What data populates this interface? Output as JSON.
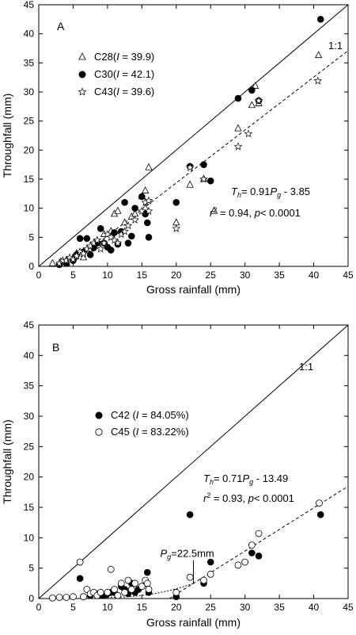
{
  "chart_data": [
    {
      "type": "scatter",
      "panel": "A",
      "xlabel": "Gross rainfall (mm)",
      "ylabel": "Throughfall (mm)",
      "xlim": [
        0,
        45
      ],
      "ylim": [
        0,
        45
      ],
      "xticks": [
        "0",
        "5",
        "10",
        "15",
        "20",
        "25",
        "30",
        "35",
        "40",
        "45"
      ],
      "yticks": [
        "0",
        "5",
        "10",
        "15",
        "20",
        "25",
        "30",
        "35",
        "40",
        "45"
      ],
      "one_to_one_label": "1:1",
      "legend_placement": "upper-left",
      "legend": [
        {
          "marker": "triangle",
          "pre": "C28(",
          "italic": "I",
          "post": " = 39.9)"
        },
        {
          "marker": "filled-circle",
          "pre": "C30(",
          "italic": "I",
          "post": " = 42.1)"
        },
        {
          "marker": "star",
          "pre": "C43(",
          "italic": "I",
          "post": " = 39.6)"
        }
      ],
      "equation": {
        "T": "T",
        "Tsub": "h",
        "mid": "= 0.91",
        "P": "P",
        "Psub": "g",
        "rest": " - 3.85"
      },
      "stats": {
        "r": "r",
        "sup": "2",
        "rest": " = 0.94, ",
        "p": "p",
        "tail": "< 0.0001"
      },
      "fit_line": {
        "slope": 0.91,
        "intercept": -3.85,
        "x_range": [
          4.2,
          45
        ]
      },
      "series": [
        {
          "name": "C28",
          "marker": "triangle",
          "points": [
            [
              2,
              0.5
            ],
            [
              3.2,
              0.8
            ],
            [
              4,
              1
            ],
            [
              5,
              1.5
            ],
            [
              5.5,
              2.2
            ],
            [
              6.5,
              1.5
            ],
            [
              7.5,
              3
            ],
            [
              8.5,
              4
            ],
            [
              9.5,
              5.5
            ],
            [
              10.5,
              6
            ],
            [
              11,
              9
            ],
            [
              11.5,
              9.5
            ],
            [
              12.5,
              7.5
            ],
            [
              13.5,
              8.5
            ],
            [
              14,
              9
            ],
            [
              15,
              12
            ],
            [
              15.5,
              13
            ],
            [
              15.5,
              10
            ],
            [
              16,
              17
            ],
            [
              20,
              7.5
            ],
            [
              22,
              14
            ],
            [
              24,
              15
            ],
            [
              25.5,
              9.5
            ],
            [
              29,
              23.7
            ],
            [
              31,
              27.7
            ],
            [
              31.5,
              31
            ],
            [
              32,
              28
            ],
            [
              40.7,
              36.3
            ]
          ]
        },
        {
          "name": "C30",
          "marker": "filled-circle",
          "points": [
            [
              3,
              0.3
            ],
            [
              4,
              0.5
            ],
            [
              5,
              1
            ],
            [
              5.5,
              2
            ],
            [
              6,
              4.8
            ],
            [
              6.5,
              2.5
            ],
            [
              7,
              4.8
            ],
            [
              7.5,
              2
            ],
            [
              8,
              3.2
            ],
            [
              8.5,
              4
            ],
            [
              9,
              6.5
            ],
            [
              9.5,
              4
            ],
            [
              10,
              3.3
            ],
            [
              10.5,
              2.8
            ],
            [
              11,
              5.8
            ],
            [
              11.5,
              3.8
            ],
            [
              12,
              6
            ],
            [
              12.5,
              11
            ],
            [
              13,
              4
            ],
            [
              13.5,
              5.2
            ],
            [
              14,
              10
            ],
            [
              15,
              12
            ],
            [
              15.5,
              9
            ],
            [
              15.8,
              7.5
            ],
            [
              16,
              5
            ],
            [
              20,
              11
            ],
            [
              22,
              17.2
            ],
            [
              24,
              17.5
            ],
            [
              25,
              14.7
            ],
            [
              29,
              28.9
            ],
            [
              31,
              30.3
            ],
            [
              32,
              28.5
            ],
            [
              41,
              42.5
            ]
          ]
        },
        {
          "name": "C43",
          "marker": "star",
          "points": [
            [
              3,
              0.5
            ],
            [
              3.5,
              1
            ],
            [
              4,
              1
            ],
            [
              4.5,
              1.5
            ],
            [
              5,
              1.2
            ],
            [
              5.5,
              1.8
            ],
            [
              6,
              2.5
            ],
            [
              6.5,
              2.2
            ],
            [
              7,
              3
            ],
            [
              7.5,
              3.5
            ],
            [
              8,
              4
            ],
            [
              8.5,
              4.5
            ],
            [
              9,
              3
            ],
            [
              9.5,
              4
            ],
            [
              10,
              5.5
            ],
            [
              10.5,
              5
            ],
            [
              11,
              4.5
            ],
            [
              11.5,
              4
            ],
            [
              12,
              5.5
            ],
            [
              12.5,
              6
            ],
            [
              13,
              7
            ],
            [
              14,
              8
            ],
            [
              15,
              9.5
            ],
            [
              15.5,
              11
            ],
            [
              16,
              11.3
            ],
            [
              16,
              9.5
            ],
            [
              20,
              6.5
            ],
            [
              22,
              17
            ],
            [
              24,
              15
            ],
            [
              29,
              20.6
            ],
            [
              30.5,
              22.8
            ],
            [
              32,
              28.5
            ],
            [
              40.6,
              31.9
            ]
          ]
        }
      ]
    },
    {
      "type": "scatter",
      "panel": "B",
      "xlabel": "Gross rainfall (mm)",
      "ylabel": "Throughfall (mm)",
      "xlim": [
        0,
        45
      ],
      "ylim": [
        0,
        45
      ],
      "xticks": [
        "0",
        "5",
        "10",
        "15",
        "20",
        "25",
        "30",
        "35",
        "40",
        "45"
      ],
      "yticks": [
        "0",
        "5",
        "10",
        "15",
        "20",
        "25",
        "30",
        "35",
        "40",
        "45"
      ],
      "one_to_one_label": "1:1",
      "legend_placement": "middle-left",
      "legend": [
        {
          "marker": "filled-circle",
          "pre": "C42 (",
          "italic": "I",
          "post": " = 84.05%)"
        },
        {
          "marker": "open-circle",
          "pre": "C45 (",
          "italic": "I",
          "post": " = 83.22%)"
        }
      ],
      "equation": {
        "T": "T",
        "Tsub": "h",
        "mid": "= 0.71",
        "P": "P",
        "Psub": "g",
        "rest": " - 13.49"
      },
      "stats": {
        "r": "r",
        "sup": "2",
        "rest": " = 0.93, ",
        "p": "p",
        "tail": "< 0.0001"
      },
      "threshold": {
        "P": "P",
        "sub": "g",
        "rest": "=22.5mm",
        "x": 22.5
      },
      "fit_line": {
        "slope": 0.71,
        "intercept": -13.49,
        "x_range": [
          19,
          45
        ]
      },
      "series": [
        {
          "name": "C42",
          "marker": "filled-circle",
          "points": [
            [
              6,
              3.3
            ],
            [
              6.5,
              0.3
            ],
            [
              7.5,
              0.5
            ],
            [
              8.5,
              0.8
            ],
            [
              9,
              0.5
            ],
            [
              9.5,
              0.5
            ],
            [
              10,
              0.8
            ],
            [
              10.5,
              1
            ],
            [
              11,
              1
            ],
            [
              12,
              2
            ],
            [
              12.5,
              1.5
            ],
            [
              13,
              0.8
            ],
            [
              13.5,
              2.5
            ],
            [
              14,
              1
            ],
            [
              14.5,
              1.5
            ],
            [
              15,
              2
            ],
            [
              15.8,
              4.3
            ],
            [
              16,
              1
            ],
            [
              20,
              0.3
            ],
            [
              22,
              13.8
            ],
            [
              24,
              2.5
            ],
            [
              25,
              6
            ],
            [
              31,
              7.5
            ],
            [
              32,
              7
            ],
            [
              41,
              13.8
            ]
          ]
        },
        {
          "name": "C45",
          "marker": "open-circle",
          "points": [
            [
              2,
              0.1
            ],
            [
              3,
              0.2
            ],
            [
              4,
              0.2
            ],
            [
              5,
              0.3
            ],
            [
              6,
              6
            ],
            [
              6.5,
              0.3
            ],
            [
              7,
              1.5
            ],
            [
              7.5,
              0.8
            ],
            [
              8,
              1
            ],
            [
              8.5,
              0.5
            ],
            [
              9,
              1
            ],
            [
              10,
              1
            ],
            [
              10.5,
              4.8
            ],
            [
              11,
              1.5
            ],
            [
              11.5,
              0.5
            ],
            [
              12,
              2.5
            ],
            [
              12.5,
              1
            ],
            [
              13,
              3
            ],
            [
              13.5,
              1.5
            ],
            [
              14,
              2.5
            ],
            [
              15,
              2
            ],
            [
              15.5,
              3
            ],
            [
              15.8,
              2.5
            ],
            [
              16,
              1.5
            ],
            [
              20,
              1
            ],
            [
              22,
              3.5
            ],
            [
              24,
              3
            ],
            [
              25,
              4
            ],
            [
              29,
              5.5
            ],
            [
              30,
              6
            ],
            [
              31,
              8.8
            ],
            [
              32,
              10.7
            ],
            [
              40.8,
              15.7
            ]
          ]
        }
      ]
    }
  ]
}
